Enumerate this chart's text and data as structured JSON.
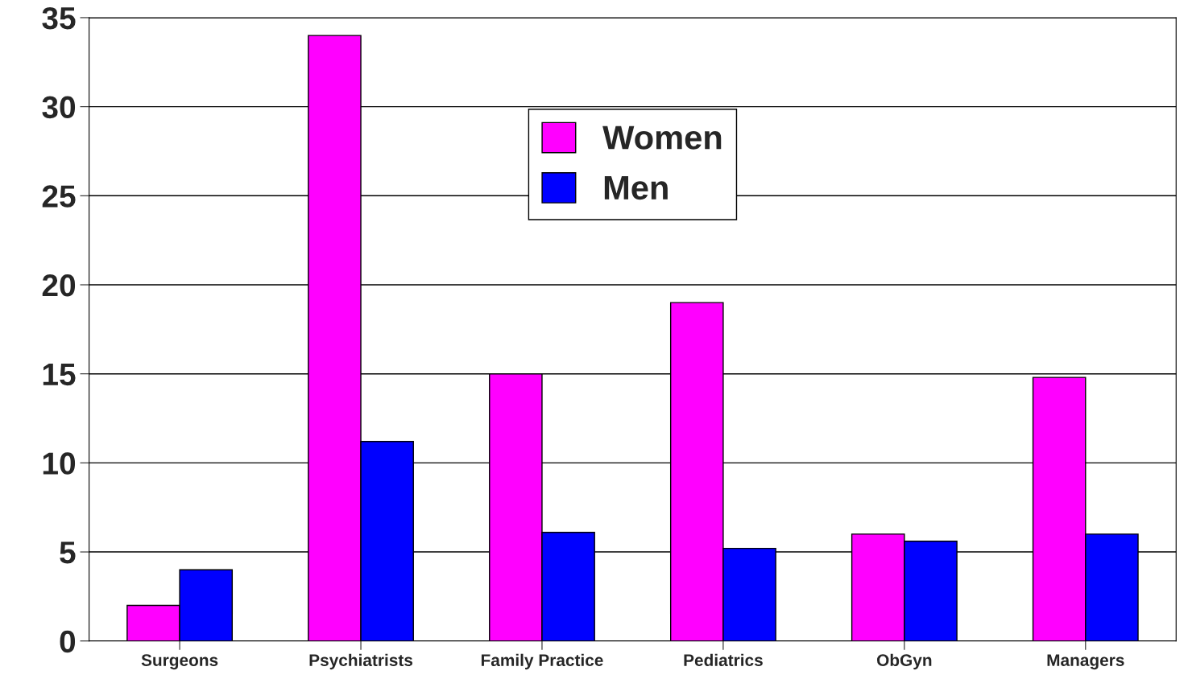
{
  "chart_data": {
    "type": "bar",
    "categories": [
      "Surgeons",
      "Psychiatrists",
      "Family Practice",
      "Pediatrics",
      "ObGyn",
      "Managers"
    ],
    "series": [
      {
        "name": "Women",
        "color": "#ff00ff",
        "values": [
          2,
          34,
          15,
          19,
          6,
          14.8
        ]
      },
      {
        "name": "Men",
        "color": "#0000ff",
        "values": [
          4,
          11.2,
          6.1,
          5.2,
          5.6,
          6
        ]
      }
    ],
    "ylim": [
      0,
      35
    ],
    "yticks": [
      0,
      5,
      10,
      15,
      20,
      25,
      30,
      35
    ],
    "grid": "y",
    "legend": "top"
  }
}
